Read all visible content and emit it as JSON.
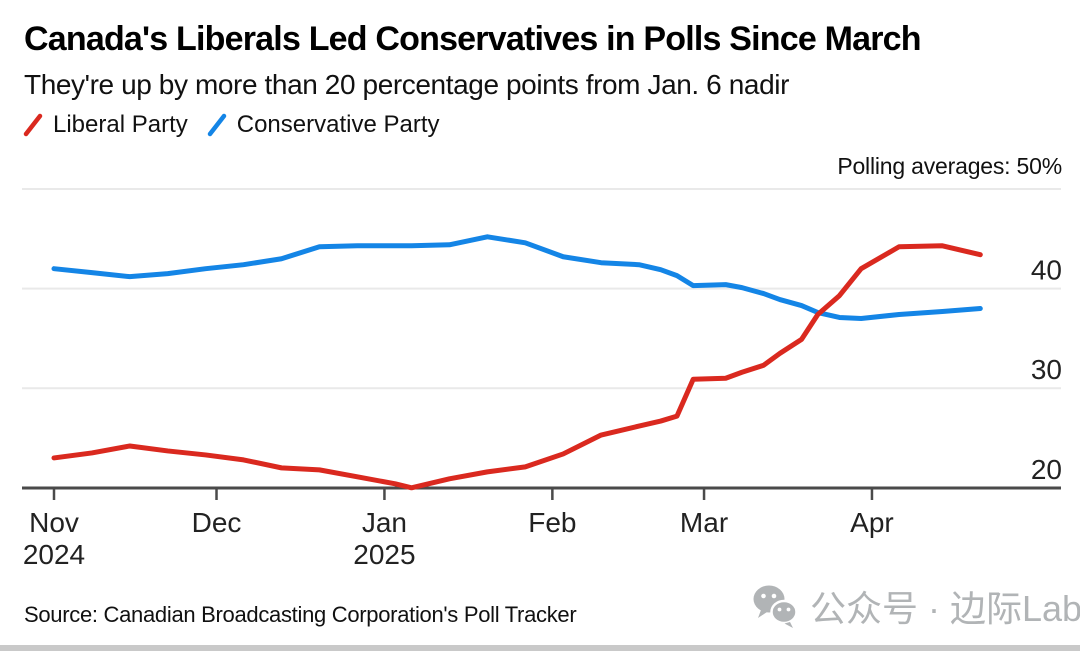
{
  "header": {
    "title": "Canada's Liberals Led Conservatives in Polls Since March",
    "subtitle": "They're up by more than 20 percentage points from Jan. 6 nadir",
    "axis_note": "Polling averages: 50%"
  },
  "legend": {
    "items": [
      {
        "label": "Liberal Party",
        "color": "#da291f"
      },
      {
        "label": "Conservative Party",
        "color": "#1485e6"
      }
    ]
  },
  "chart_data": {
    "type": "line",
    "title": "Canada's Liberals Led Conservatives in Polls Since March",
    "subtitle": "They're up by more than 20 percentage points from Jan. 6 nadir",
    "axis_note": "Polling averages: 50%",
    "unit": "%",
    "grid": true,
    "legend_position": "top-left",
    "ylim": [
      20,
      50
    ],
    "y_gridlines": [
      50,
      40,
      30
    ],
    "y_axis_labels": [
      40,
      30,
      20
    ],
    "baseline_value": 20,
    "x": [
      "2024-11-01",
      "2024-11-08",
      "2024-11-15",
      "2024-11-22",
      "2024-11-29",
      "2024-12-06",
      "2024-12-13",
      "2024-12-20",
      "2024-12-27",
      "2025-01-03",
      "2025-01-06",
      "2025-01-13",
      "2025-01-20",
      "2025-01-27",
      "2025-02-03",
      "2025-02-10",
      "2025-02-17",
      "2025-02-21",
      "2025-02-24",
      "2025-02-27",
      "2025-03-05",
      "2025-03-08",
      "2025-03-12",
      "2025-03-15",
      "2025-03-19",
      "2025-03-22",
      "2025-03-26",
      "2025-03-30",
      "2025-04-06",
      "2025-04-14",
      "2025-04-21"
    ],
    "series": [
      {
        "name": "Liberal Party",
        "color": "#da291f",
        "values": [
          23.0,
          23.5,
          24.2,
          23.7,
          23.3,
          22.8,
          22.0,
          21.8,
          21.1,
          20.4,
          20.0,
          20.9,
          21.6,
          22.1,
          23.4,
          25.3,
          26.2,
          26.7,
          27.2,
          30.9,
          31.0,
          31.6,
          32.3,
          33.5,
          34.9,
          37.4,
          39.3,
          42.0,
          44.2,
          44.3,
          43.4
        ]
      },
      {
        "name": "Conservative Party",
        "color": "#1485e6",
        "values": [
          42.0,
          41.6,
          41.2,
          41.5,
          42.0,
          42.4,
          43.0,
          44.2,
          44.3,
          44.3,
          44.3,
          44.4,
          45.2,
          44.6,
          43.2,
          42.6,
          42.4,
          41.9,
          41.3,
          40.3,
          40.4,
          40.1,
          39.5,
          38.9,
          38.3,
          37.6,
          37.1,
          37.0,
          37.4,
          37.7,
          38.0
        ]
      }
    ],
    "x_ticks": [
      {
        "label": "Nov",
        "date": "2024-11-01",
        "year": "2024"
      },
      {
        "label": "Dec",
        "date": "2024-12-01"
      },
      {
        "label": "Jan",
        "date": "2025-01-01",
        "year": "2025"
      },
      {
        "label": "Feb",
        "date": "2025-02-01"
      },
      {
        "label": "Mar",
        "date": "2025-03-01"
      },
      {
        "label": "Apr",
        "date": "2025-04-01"
      }
    ]
  },
  "footer": {
    "source": "Source: Canadian Broadcasting Corporation's Poll Tracker",
    "watermark": "公众号 · 边际Lab"
  },
  "colors": {
    "liberal": "#da291f",
    "conservative": "#1485e6",
    "grid": "#e9e9e9",
    "axis": "#4a4a4a",
    "tick_text": "#222222",
    "watermark": "#b1b4b6",
    "bottom_bar": "#c9c9c9"
  }
}
